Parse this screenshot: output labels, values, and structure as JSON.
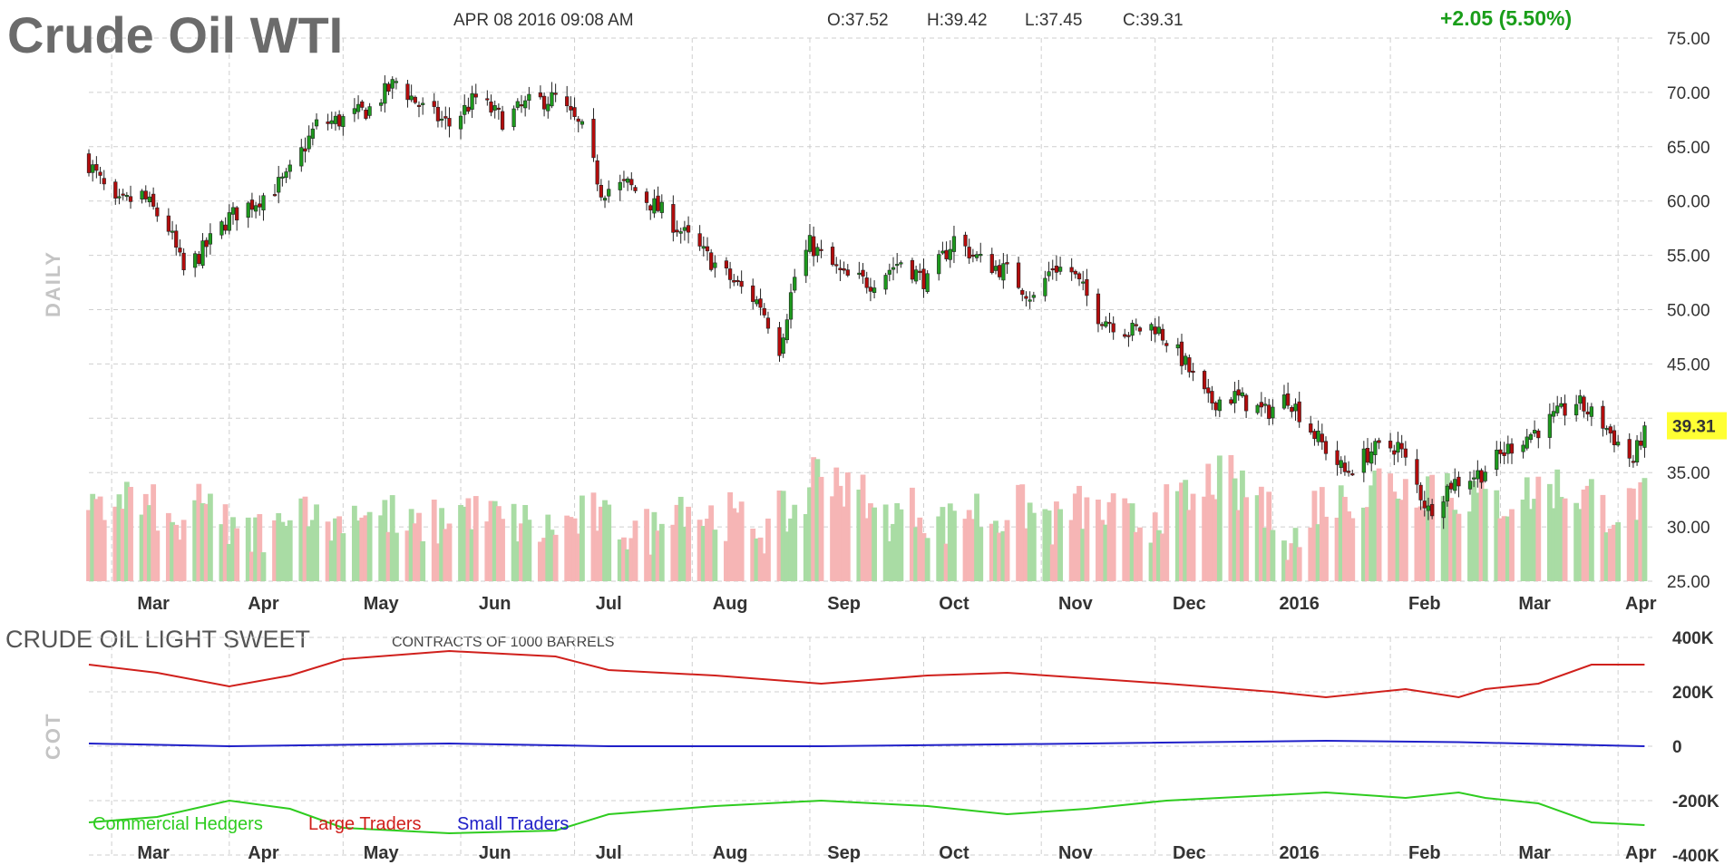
{
  "header": {
    "title": "Crude Oil WTI",
    "datetime": "APR 08 2016 09:08 AM",
    "open": "O:37.52",
    "high": "H:39.42",
    "low": "L:37.45",
    "close": "C:39.31",
    "change": "+2.05 (5.50%)"
  },
  "colors": {
    "up": "#1d9a1d",
    "down": "#b30c0c",
    "vol_up": "#a9dca4",
    "vol_down": "#f6b5b5",
    "commercial": "#2ecc1f",
    "large": "#d0201c",
    "small": "#2020c8",
    "price_tag": "#ffff33",
    "change": "#1a9e1a"
  },
  "chart_data": [
    {
      "type": "candlestick",
      "title": "Crude Oil WTI",
      "panel_label": "DAILY",
      "ylim": [
        25,
        75
      ],
      "y_ticks": [
        "75.00",
        "70.00",
        "65.00",
        "60.00",
        "55.00",
        "50.00",
        "45.00",
        "35.00",
        "30.00",
        "25.00"
      ],
      "last_price_label": "39.31",
      "x_labels": [
        "Mar",
        "Apr",
        "May",
        "Jun",
        "Jul",
        "Aug",
        "Sep",
        "Oct",
        "Nov",
        "Dec",
        "2016",
        "Feb",
        "Mar",
        "Apr"
      ],
      "close_path": [
        [
          "2015-02-23",
          63.5
        ],
        [
          "2015-03-02",
          59.5
        ],
        [
          "2015-03-09",
          60.5
        ],
        [
          "2015-03-16",
          57.5
        ],
        [
          "2015-03-20",
          53.5
        ],
        [
          "2015-03-24",
          55.0
        ],
        [
          "2015-04-01",
          58.5
        ],
        [
          "2015-04-08",
          60.0
        ],
        [
          "2015-04-16",
          62.0
        ],
        [
          "2015-04-24",
          67.0
        ],
        [
          "2015-05-01",
          67.5
        ],
        [
          "2015-05-08",
          68.5
        ],
        [
          "2015-05-15",
          71.0
        ],
        [
          "2015-05-22",
          68.5
        ],
        [
          "2015-05-29",
          67.0
        ],
        [
          "2015-06-05",
          69.5
        ],
        [
          "2015-06-12",
          67.5
        ],
        [
          "2015-06-19",
          69.0
        ],
        [
          "2015-06-26",
          69.5
        ],
        [
          "2015-07-03",
          66.5
        ],
        [
          "2015-07-08",
          61.0
        ],
        [
          "2015-07-15",
          61.5
        ],
        [
          "2015-07-24",
          59.0
        ],
        [
          "2015-08-03",
          55.5
        ],
        [
          "2015-08-12",
          52.5
        ],
        [
          "2015-08-19",
          50.5
        ],
        [
          "2015-08-24",
          46.5
        ],
        [
          "2015-08-28",
          53.0
        ],
        [
          "2015-09-01",
          56.0
        ],
        [
          "2015-09-10",
          53.0
        ],
        [
          "2015-09-17",
          52.5
        ],
        [
          "2015-09-25",
          54.5
        ],
        [
          "2015-10-02",
          52.5
        ],
        [
          "2015-10-09",
          56.5
        ],
        [
          "2015-10-16",
          54.5
        ],
        [
          "2015-10-23",
          53.5
        ],
        [
          "2015-10-30",
          51.0
        ],
        [
          "2015-11-04",
          54.0
        ],
        [
          "2015-11-09",
          53.5
        ],
        [
          "2015-11-16",
          49.5
        ],
        [
          "2015-11-24",
          48.0
        ],
        [
          "2015-12-01",
          48.5
        ],
        [
          "2015-12-08",
          45.5
        ],
        [
          "2015-12-15",
          41.5
        ],
        [
          "2015-12-22",
          42.0
        ],
        [
          "2015-12-30",
          40.5
        ],
        [
          "2016-01-05",
          42.0
        ],
        [
          "2016-01-12",
          38.5
        ],
        [
          "2016-01-20",
          35.0
        ],
        [
          "2016-01-27",
          37.0
        ],
        [
          "2016-02-03",
          37.5
        ],
        [
          "2016-02-11",
          31.5
        ],
        [
          "2016-02-17",
          34.0
        ],
        [
          "2016-02-25",
          35.0
        ],
        [
          "2016-03-04",
          37.5
        ],
        [
          "2016-03-11",
          39.0
        ],
        [
          "2016-03-21",
          41.5
        ],
        [
          "2016-03-28",
          39.5
        ],
        [
          "2016-04-05",
          36.0
        ],
        [
          "2016-04-08",
          39.31
        ]
      ],
      "volume_levels": [
        0.45,
        0.6,
        0.5,
        0.35,
        0.45,
        0.5,
        0.3,
        0.35,
        0.55,
        0.4,
        0.5,
        0.45,
        0.35,
        0.4,
        0.5,
        0.45,
        0.4,
        0.35,
        0.4,
        0.45,
        0.4,
        0.35,
        0.55,
        0.45,
        0.4,
        0.35,
        0.45,
        0.5,
        0.75,
        0.6,
        0.45,
        0.5,
        0.4,
        0.5,
        0.45,
        0.5,
        0.45,
        0.4,
        0.5,
        0.45,
        0.4,
        0.5,
        0.55,
        0.7,
        0.6,
        0.45,
        0.3,
        0.55,
        0.6,
        0.7,
        0.65,
        0.7,
        0.6,
        0.55,
        0.6,
        0.65,
        0.6,
        0.5,
        0.55,
        0.6
      ]
    },
    {
      "type": "line",
      "title": "CRUDE OIL LIGHT SWEET",
      "subtitle": "CONTRACTS OF 1000 BARRELS",
      "panel_label": "COT",
      "ylim": [
        -400000,
        400000
      ],
      "y_ticks": [
        "400K",
        "200K",
        "0",
        "-200K",
        "-400K"
      ],
      "x_labels": [
        "Mar",
        "Apr",
        "May",
        "Jun",
        "Jul",
        "Aug",
        "Sep",
        "Oct",
        "Nov",
        "Dec",
        "2016",
        "Feb",
        "Mar",
        "Apr"
      ],
      "legend": [
        "Commercial Hedgers",
        "Large Traders",
        "Small Traders"
      ],
      "series": [
        {
          "name": "Commercial Hedgers",
          "values": [
            [
              "2015-02-23",
              -280000
            ],
            [
              "2015-03-13",
              -260000
            ],
            [
              "2015-04-01",
              -200000
            ],
            [
              "2015-04-17",
              -230000
            ],
            [
              "2015-05-01",
              -300000
            ],
            [
              "2015-05-29",
              -320000
            ],
            [
              "2015-06-26",
              -310000
            ],
            [
              "2015-07-10",
              -250000
            ],
            [
              "2015-08-07",
              -220000
            ],
            [
              "2015-09-04",
              -200000
            ],
            [
              "2015-10-02",
              -220000
            ],
            [
              "2015-10-23",
              -250000
            ],
            [
              "2015-11-13",
              -230000
            ],
            [
              "2015-12-04",
              -200000
            ],
            [
              "2016-01-01",
              -180000
            ],
            [
              "2016-01-15",
              -170000
            ],
            [
              "2016-02-05",
              -190000
            ],
            [
              "2016-02-19",
              -170000
            ],
            [
              "2016-02-26",
              -190000
            ],
            [
              "2016-03-11",
              -210000
            ],
            [
              "2016-03-25",
              -280000
            ],
            [
              "2016-04-08",
              -290000
            ]
          ]
        },
        {
          "name": "Large Traders",
          "values": [
            [
              "2015-02-23",
              300000
            ],
            [
              "2015-03-13",
              270000
            ],
            [
              "2015-04-01",
              220000
            ],
            [
              "2015-04-17",
              260000
            ],
            [
              "2015-05-01",
              320000
            ],
            [
              "2015-05-29",
              350000
            ],
            [
              "2015-06-26",
              330000
            ],
            [
              "2015-07-10",
              280000
            ],
            [
              "2015-08-07",
              260000
            ],
            [
              "2015-09-04",
              230000
            ],
            [
              "2015-10-02",
              260000
            ],
            [
              "2015-10-23",
              270000
            ],
            [
              "2015-11-13",
              250000
            ],
            [
              "2015-12-04",
              230000
            ],
            [
              "2016-01-01",
              200000
            ],
            [
              "2016-01-15",
              180000
            ],
            [
              "2016-02-05",
              210000
            ],
            [
              "2016-02-19",
              180000
            ],
            [
              "2016-02-26",
              210000
            ],
            [
              "2016-03-11",
              230000
            ],
            [
              "2016-03-25",
              300000
            ],
            [
              "2016-04-08",
              300000
            ]
          ]
        },
        {
          "name": "Small Traders",
          "values": [
            [
              "2015-02-23",
              10000
            ],
            [
              "2015-04-01",
              0
            ],
            [
              "2015-05-29",
              10000
            ],
            [
              "2015-07-10",
              0
            ],
            [
              "2015-09-04",
              0
            ],
            [
              "2015-11-13",
              10000
            ],
            [
              "2016-01-15",
              20000
            ],
            [
              "2016-02-19",
              15000
            ],
            [
              "2016-04-08",
              0
            ]
          ]
        }
      ]
    }
  ]
}
